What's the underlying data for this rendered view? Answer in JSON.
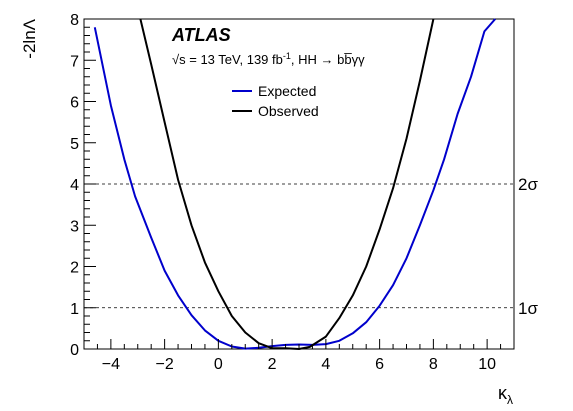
{
  "chart_data": {
    "type": "line",
    "title": "",
    "xlabel": "κ",
    "xlabel_sub": "λ",
    "ylabel": "-2lnΛ",
    "xlim": [
      -5,
      11
    ],
    "ylim": [
      0,
      8
    ],
    "x_ticks": [
      -4,
      -2,
      0,
      2,
      4,
      6,
      8,
      10
    ],
    "x_tick_labels": [
      "−4",
      "−2",
      "0",
      "2",
      "4",
      "6",
      "8",
      "10"
    ],
    "y_ticks": [
      0,
      1,
      2,
      3,
      4,
      5,
      6,
      7,
      8
    ],
    "y_tick_labels": [
      "0",
      "1",
      "2",
      "3",
      "4",
      "5",
      "6",
      "7",
      "8"
    ],
    "grid": false,
    "legend_position": "top-center",
    "annotations": {
      "experiment": "ATLAS",
      "info_sqrt": "√s",
      "info_energy": " = 13 TeV, 139 fb",
      "info_lumi_exp": "-1",
      "info_process": ", HH → bb̅γγ"
    },
    "reference_lines": [
      {
        "y": 4,
        "label": "2σ",
        "style": "dashed"
      },
      {
        "y": 1,
        "label": "1σ",
        "style": "dashed"
      }
    ],
    "series": [
      {
        "name": "Expected",
        "color": "#0000cc",
        "x": [
          -4.6,
          -4.0,
          -3.5,
          -3.1,
          -2.5,
          -2.0,
          -1.5,
          -1.0,
          -0.5,
          0.0,
          0.5,
          1.0,
          1.5,
          2.0,
          2.5,
          3.0,
          3.5,
          4.0,
          4.5,
          5.0,
          5.5,
          6.0,
          6.5,
          7.0,
          7.5,
          8.0,
          8.4,
          8.9,
          9.4,
          9.9,
          10.3
        ],
        "y": [
          7.8,
          5.9,
          4.6,
          3.7,
          2.7,
          1.9,
          1.3,
          0.82,
          0.45,
          0.2,
          0.06,
          0.01,
          0.03,
          0.07,
          0.1,
          0.11,
          0.1,
          0.12,
          0.2,
          0.38,
          0.65,
          1.05,
          1.55,
          2.2,
          3.0,
          3.85,
          4.6,
          5.7,
          6.6,
          7.7,
          8.0
        ]
      },
      {
        "name": "Observed",
        "color": "#000000",
        "x": [
          -2.9,
          -2.5,
          -2.0,
          -1.5,
          -1.0,
          -0.5,
          0.0,
          0.5,
          1.0,
          1.5,
          2.0,
          2.5,
          3.0,
          3.4,
          4.0,
          4.5,
          5.0,
          5.5,
          6.0,
          6.5,
          7.0,
          7.5,
          8.0
        ],
        "y": [
          8.0,
          6.9,
          5.5,
          4.1,
          3.0,
          2.1,
          1.4,
          0.8,
          0.4,
          0.14,
          0.02,
          0.02,
          0.0,
          0.05,
          0.3,
          0.75,
          1.3,
          2.0,
          2.9,
          3.9,
          5.1,
          6.5,
          8.0
        ]
      }
    ]
  }
}
